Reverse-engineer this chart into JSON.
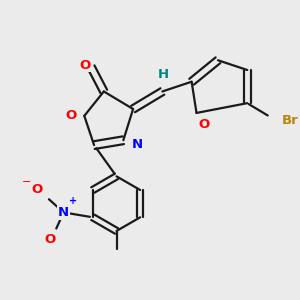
{
  "background_color": "#ebebeb",
  "bond_color": "#1a1a1a",
  "atom_colors": {
    "O": "#ff0000",
    "N": "#0000ff",
    "Br": "#b8860b",
    "H": "#008080",
    "C": "#1a1a1a"
  },
  "bond_lw": 1.6,
  "font_size": 9.5
}
